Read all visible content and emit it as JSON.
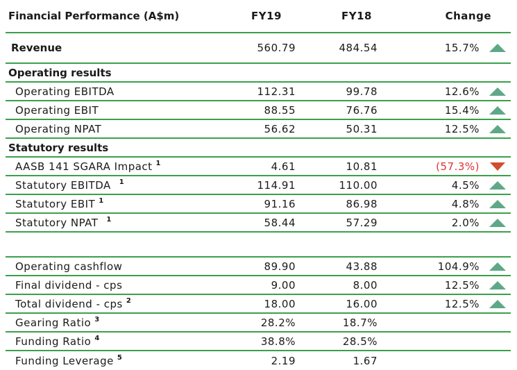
{
  "header": {
    "title": "Financial Performance (A$m)",
    "col1": "FY19",
    "col2": "FY18",
    "col3": "Change"
  },
  "revenue": {
    "label": "Revenue",
    "fy19": "560.79",
    "fy18": "484.54",
    "change": "15.7%"
  },
  "operating": {
    "title": "Operating results",
    "rows": [
      {
        "label": "Operating EBITDA",
        "fy19": "112.31",
        "fy18": "99.78",
        "change": "12.6%"
      },
      {
        "label": "Operating EBIT",
        "fy19": "88.55",
        "fy18": "76.76",
        "change": "15.4%"
      },
      {
        "label": "Operating NPAT",
        "fy19": "56.62",
        "fy18": "50.31",
        "change": "12.5%"
      }
    ]
  },
  "statutory": {
    "title": "Statutory results",
    "rows": [
      {
        "label": "AASB 141 SGARA Impact",
        "note": "1",
        "fy19": "4.61",
        "fy18": "10.81",
        "change": "(57.3%)"
      },
      {
        "label": "Statutory EBITDA",
        "note": "1",
        "fy19": "114.91",
        "fy18": "110.00",
        "change": "4.5%"
      },
      {
        "label": "Statutory EBIT",
        "note": "1",
        "fy19": "91.16",
        "fy18": "86.98",
        "change": "4.8%"
      },
      {
        "label": "Statutory NPAT",
        "note": "1",
        "fy19": "58.44",
        "fy18": "57.29",
        "change": "2.0%"
      }
    ]
  },
  "other": {
    "rows": [
      {
        "label": "Operating cashflow",
        "fy19": "89.90",
        "fy18": "43.88",
        "change": "104.9%"
      },
      {
        "label": "Final dividend - cps",
        "fy19": "9.00",
        "fy18": "8.00",
        "change": "12.5%"
      },
      {
        "label": "Total dividend - cps",
        "note": "2",
        "fy19": "18.00",
        "fy18": "16.00",
        "change": "12.5%"
      },
      {
        "label": "Gearing Ratio",
        "note": "3",
        "fy19": "28.2%",
        "fy18": "18.7%"
      },
      {
        "label": "Funding Ratio",
        "note": "4",
        "fy19": "38.8%",
        "fy18": "28.5%"
      },
      {
        "label": "Funding Leverage",
        "note": "5",
        "fy19": "2.19",
        "fy18": "1.67"
      }
    ]
  },
  "colors": {
    "rule": "#3aa04a",
    "up": "#5fa887",
    "down": "#d04e2e",
    "negative": "#e03030"
  },
  "icons": {
    "up": "triangle-up-icon",
    "down": "triangle-down-icon"
  }
}
